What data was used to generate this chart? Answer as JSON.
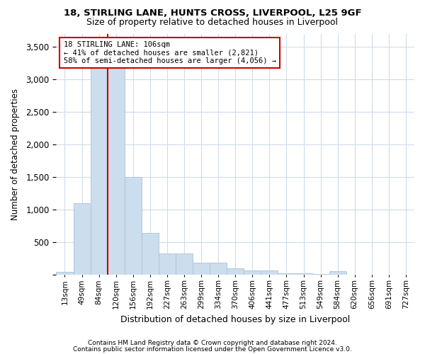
{
  "title1": "18, STIRLING LANE, HUNTS CROSS, LIVERPOOL, L25 9GF",
  "title2": "Size of property relative to detached houses in Liverpool",
  "xlabel": "Distribution of detached houses by size in Liverpool",
  "ylabel": "Number of detached properties",
  "categories": [
    "13sqm",
    "49sqm",
    "84sqm",
    "120sqm",
    "156sqm",
    "192sqm",
    "227sqm",
    "263sqm",
    "299sqm",
    "334sqm",
    "370sqm",
    "406sqm",
    "441sqm",
    "477sqm",
    "513sqm",
    "549sqm",
    "584sqm",
    "620sqm",
    "656sqm",
    "691sqm",
    "727sqm"
  ],
  "values": [
    50,
    1100,
    3200,
    3180,
    1500,
    650,
    330,
    330,
    195,
    195,
    100,
    65,
    65,
    30,
    30,
    15,
    60,
    8,
    3,
    3,
    2
  ],
  "bar_color": "#ccdded",
  "bar_edge_color": "#aac4d8",
  "vline_x": 2.5,
  "vline_color": "#cc0000",
  "annotation_text": "18 STIRLING LANE: 106sqm\n← 41% of detached houses are smaller (2,821)\n58% of semi-detached houses are larger (4,056) →",
  "annotation_box_color": "#ffffff",
  "annotation_box_edge": "#cc0000",
  "ylim": [
    0,
    3700
  ],
  "yticks": [
    0,
    500,
    1000,
    1500,
    2000,
    2500,
    3000,
    3500
  ],
  "footer1": "Contains HM Land Registry data © Crown copyright and database right 2024.",
  "footer2": "Contains public sector information licensed under the Open Government Licence v3.0.",
  "bg_color": "#ffffff",
  "grid_color": "#d0dce8"
}
